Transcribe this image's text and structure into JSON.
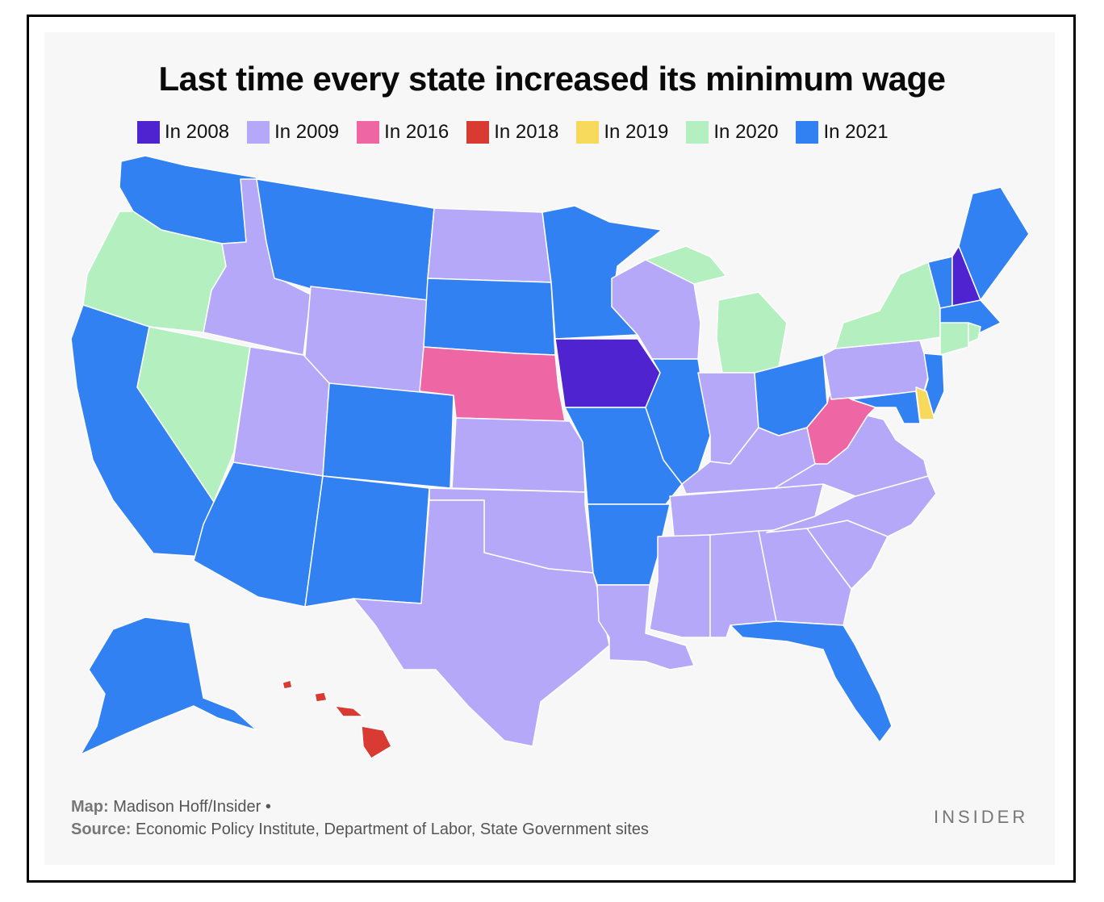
{
  "title": "Last time every state increased its minimum wage",
  "legend": [
    {
      "label": "In 2008",
      "color": "#4f23cf"
    },
    {
      "label": "In 2009",
      "color": "#b6a8f8"
    },
    {
      "label": "In 2016",
      "color": "#ee66a4"
    },
    {
      "label": "In 2018",
      "color": "#d93a32"
    },
    {
      "label": "In 2019",
      "color": "#f7d95b"
    },
    {
      "label": "In 2020",
      "color": "#b4efc0"
    },
    {
      "label": "In 2021",
      "color": "#3181f2"
    }
  ],
  "states": {
    "WA": "In 2021",
    "OR": "In 2020",
    "CA": "In 2021",
    "NV": "In 2020",
    "ID": "In 2009",
    "MT": "In 2021",
    "WY": "In 2009",
    "UT": "In 2009",
    "AZ": "In 2021",
    "CO": "In 2021",
    "NM": "In 2021",
    "ND": "In 2009",
    "SD": "In 2021",
    "NE": "In 2016",
    "KS": "In 2009",
    "OK": "In 2009",
    "TX": "In 2009",
    "MN": "In 2021",
    "IA": "In 2008",
    "MO": "In 2021",
    "AR": "In 2021",
    "LA": "In 2009",
    "WI": "In 2009",
    "IL": "In 2021",
    "MI": "In 2020",
    "IN": "In 2009",
    "OH": "In 2021",
    "KY": "In 2009",
    "TN": "In 2009",
    "MS": "In 2009",
    "AL": "In 2009",
    "GA": "In 2009",
    "FL": "In 2021",
    "SC": "In 2009",
    "NC": "In 2009",
    "VA": "In 2009",
    "WV": "In 2016",
    "PA": "In 2009",
    "NY": "In 2020",
    "VT": "In 2021",
    "NH": "In 2008",
    "ME": "In 2021",
    "MA": "In 2021",
    "CT": "In 2020",
    "RI": "In 2020",
    "NJ": "In 2021",
    "DE": "In 2019",
    "MD": "In 2021",
    "AK": "In 2021",
    "HI": "In 2018"
  },
  "credits": {
    "map_label": "Map:",
    "map_text": "Madison Hoff/Insider •",
    "source_label": "Source:",
    "source_text": "Economic Policy Institute, Department of Labor, State Government sites"
  },
  "brand": "INSIDER"
}
